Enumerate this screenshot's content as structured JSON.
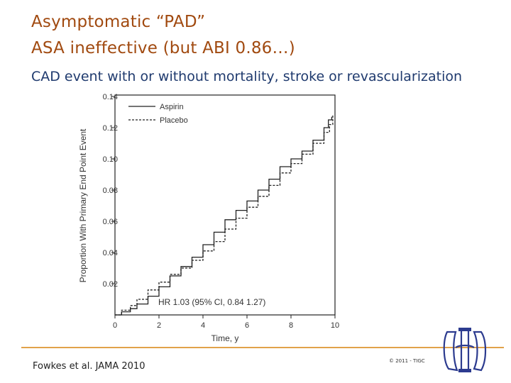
{
  "slide": {
    "title_line1": "Asymptomatic “PAD”",
    "title_line2": "ASA ineffective (but ABI 0.86…)",
    "subtitle": "CAD event with or without mortality, stroke or revascularization",
    "citation": "Fowkes et al. JAMA 2010",
    "copyright": "© 2011 - TIGC",
    "colors": {
      "title": "#a14a10",
      "subtitle": "#1f3a6e",
      "rule": "#e1a24a",
      "logo": "#2c3b8f"
    }
  },
  "chart_data": {
    "type": "line",
    "title": "",
    "xlabel": "Time, y",
    "ylabel": "Proportion With Primary End Point Event",
    "xlim": [
      0,
      10
    ],
    "ylim": [
      0,
      0.14
    ],
    "xticks": [
      0,
      2,
      4,
      6,
      8,
      10
    ],
    "yticks": [
      0.02,
      0.04,
      0.06,
      0.08,
      0.1,
      0.12,
      0.14
    ],
    "ytick_labels": [
      "0.02",
      "0.04",
      "0.06",
      "0.08",
      "0.10",
      "0.12",
      "0.14"
    ],
    "grid": false,
    "legend_position": "top-left",
    "annotation": "HR 1.03 (95% CI, 0.84 1.27)",
    "series": [
      {
        "name": "Aspirin",
        "style": "solid",
        "x": [
          0,
          0.3,
          0.7,
          1.0,
          1.5,
          2.0,
          2.5,
          3.0,
          3.5,
          4.0,
          4.5,
          5.0,
          5.5,
          6.0,
          6.5,
          7.0,
          7.5,
          8.0,
          8.5,
          9.0,
          9.5,
          9.7,
          9.85
        ],
        "y": [
          0,
          0.002,
          0.004,
          0.007,
          0.012,
          0.018,
          0.025,
          0.031,
          0.037,
          0.045,
          0.053,
          0.061,
          0.067,
          0.073,
          0.08,
          0.087,
          0.095,
          0.1,
          0.105,
          0.112,
          0.12,
          0.125,
          0.127
        ]
      },
      {
        "name": "Placebo",
        "style": "dashed",
        "x": [
          0,
          0.3,
          0.7,
          1.0,
          1.5,
          2.0,
          2.5,
          3.0,
          3.5,
          4.0,
          4.5,
          5.0,
          5.5,
          6.0,
          6.5,
          7.0,
          7.5,
          8.0,
          8.5,
          9.0,
          9.5,
          9.75,
          9.9
        ],
        "y": [
          0,
          0.003,
          0.006,
          0.01,
          0.016,
          0.021,
          0.026,
          0.03,
          0.035,
          0.041,
          0.047,
          0.055,
          0.062,
          0.069,
          0.076,
          0.083,
          0.091,
          0.097,
          0.103,
          0.11,
          0.117,
          0.122,
          0.128
        ]
      }
    ]
  }
}
